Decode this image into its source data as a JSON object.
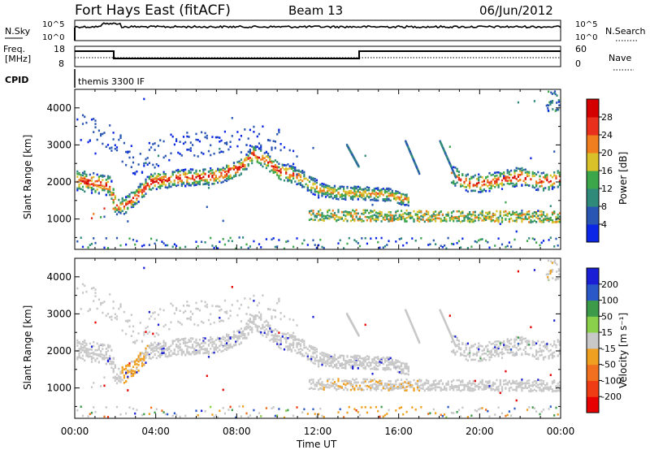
{
  "header": {
    "station": "Fort Hays East (fitACF)",
    "beam": "Beam 13",
    "date": "06/Jun/2012"
  },
  "noise_panel": {
    "left_label": "N.Sky",
    "right_label": "N.Search",
    "left_ticks": [
      "10^5",
      "10^0"
    ],
    "right_ticks": [
      "10^5",
      "10^0"
    ]
  },
  "freq_panel": {
    "label_line1": "Freq.",
    "label_line2": "[MHz]",
    "left_ticks": [
      "18",
      "8"
    ],
    "right_ticks": [
      "60",
      "0"
    ],
    "right_label": "Nave"
  },
  "cpid_panel": {
    "label": "CPID",
    "program": "themis 3300 IF"
  },
  "chart_data": [
    {
      "type": "heatmap",
      "name_panel": "power",
      "ylabel": "Slant Range [km]",
      "y_ticks": [
        "1000",
        "2000",
        "3000",
        "4000"
      ],
      "colorbar_label": "Power [dB]",
      "colorbar_ticks": [
        "4",
        "8",
        "12",
        "16",
        "20",
        "24",
        "28"
      ],
      "colors": [
        "#0b26e6",
        "#2a56b3",
        "#2f8a7a",
        "#3ba64a",
        "#d9c12a",
        "#f07d1e",
        "#e8301c",
        "#d40000"
      ]
    },
    {
      "type": "heatmap",
      "name_panel": "velocity",
      "ylabel": "Slant Range [km]",
      "y_ticks": [
        "1000",
        "2000",
        "3000",
        "4000"
      ],
      "colorbar_label": "Velocity [m s⁻¹]",
      "colorbar_ticks": [
        "200",
        "100",
        "50",
        "15",
        "-15",
        "-50",
        "-100",
        "-200"
      ],
      "colors": [
        "#1a1ed4",
        "#2b58c8",
        "#3c9a48",
        "#8ad04a",
        "#c8c8c8",
        "#f0a020",
        "#f07020",
        "#f03c14",
        "#e60000"
      ]
    }
  ],
  "x_axis": {
    "label": "Time UT",
    "ticks": [
      "00:00",
      "04:00",
      "08:00",
      "12:00",
      "16:00",
      "20:00",
      "00:00"
    ]
  }
}
